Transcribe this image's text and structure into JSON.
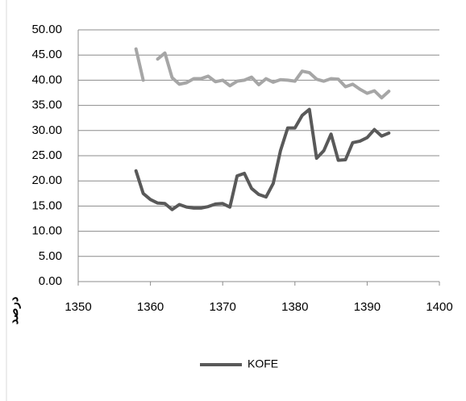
{
  "chart_data": {
    "type": "line",
    "x": [
      1358,
      1359,
      1360,
      1361,
      1362,
      1363,
      1364,
      1365,
      1366,
      1367,
      1368,
      1369,
      1370,
      1371,
      1372,
      1373,
      1374,
      1375,
      1376,
      1377,
      1378,
      1379,
      1380,
      1381,
      1382,
      1383,
      1384,
      1385,
      1386,
      1387,
      1388,
      1389,
      1390,
      1391,
      1392,
      1393
    ],
    "series": [
      {
        "name": "KOFE",
        "color": "#595959",
        "values": [
          22,
          17.5,
          16.3,
          15.6,
          15.5,
          14.3,
          15.3,
          14.8,
          14.6,
          14.6,
          14.9,
          15.4,
          15.5,
          14.8,
          21,
          21.5,
          18.5,
          17.3,
          16.8,
          19.5,
          26,
          30.5,
          30.5,
          33,
          34.2,
          24.5,
          26,
          29.3,
          24.1,
          24.2,
          27.6,
          27.9,
          28.6,
          30.2,
          28.9,
          29.5
        ]
      },
      {
        "color": "#a6a6a6",
        "values": [
          46.2,
          40,
          null,
          44.2,
          45.4,
          40.5,
          39.2,
          39.5,
          40.3,
          40.3,
          40.8,
          39.7,
          40,
          38.9,
          39.8,
          40,
          40.6,
          39.1,
          40.3,
          39.6,
          40.1,
          40,
          39.8,
          41.8,
          41.5,
          40.2,
          39.8,
          40.3,
          40.2,
          38.7,
          39.2,
          38.2,
          37.4,
          37.9,
          36.5,
          37.8
        ]
      }
    ],
    "ylim": [
      0,
      50
    ],
    "yticks": [
      {
        "value": 0,
        "label": "0.00"
      },
      {
        "value": 5,
        "label": "5.00"
      },
      {
        "value": 10,
        "label": "10.00"
      },
      {
        "value": 15,
        "label": "15.00"
      },
      {
        "value": 20,
        "label": "20.00"
      },
      {
        "value": 25,
        "label": "25.00"
      },
      {
        "value": 30,
        "label": "30.00"
      },
      {
        "value": 35,
        "label": "35.00"
      },
      {
        "value": 40,
        "label": "40.00"
      },
      {
        "value": 45,
        "label": "45.00"
      },
      {
        "value": 50,
        "label": "50.00"
      }
    ],
    "xlim": [
      1350,
      1400
    ],
    "xticks": [
      1350,
      1360,
      1370,
      1380,
      1390,
      1400
    ],
    "y_label": "درصد",
    "grid": true,
    "legend": "bottom"
  }
}
